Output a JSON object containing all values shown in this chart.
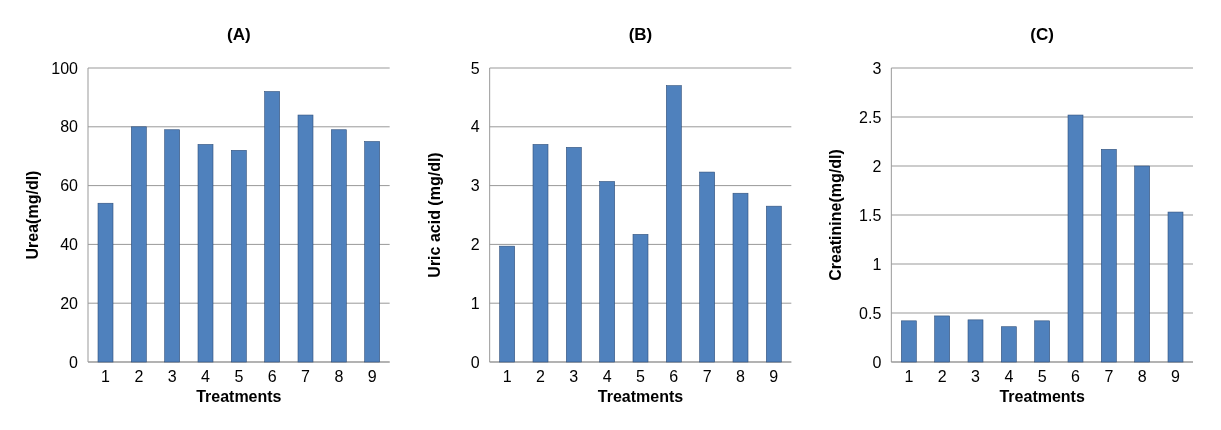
{
  "chart_data": [
    {
      "type": "bar",
      "title": "(A)",
      "xlabel": "Treatments",
      "ylabel": "Urea(mg/dl)",
      "categories": [
        "1",
        "2",
        "3",
        "4",
        "5",
        "6",
        "7",
        "8",
        "9"
      ],
      "values": [
        54,
        80,
        79,
        74,
        72,
        92,
        84,
        79,
        75
      ],
      "color": "#4f81bd",
      "ylim": [
        0,
        100
      ],
      "yticks": [
        0,
        20,
        40,
        60,
        80,
        100
      ],
      "grid": "y"
    },
    {
      "type": "bar",
      "title": "(B)",
      "xlabel": "Treatments",
      "ylabel": "Uric acid (mg/dl)",
      "categories": [
        "1",
        "2",
        "3",
        "4",
        "5",
        "6",
        "7",
        "8",
        "9"
      ],
      "values": [
        1.97,
        3.7,
        3.65,
        3.07,
        2.17,
        4.7,
        3.23,
        2.87,
        2.65
      ],
      "color": "#4f81bd",
      "ylim": [
        0,
        5
      ],
      "yticks": [
        0,
        1,
        2,
        3,
        4,
        5
      ],
      "grid": "y"
    },
    {
      "type": "bar",
      "title": "(C)",
      "xlabel": "Treatments",
      "ylabel": "Creatinine(mg/dl)",
      "categories": [
        "1",
        "2",
        "3",
        "4",
        "5",
        "6",
        "7",
        "8",
        "9"
      ],
      "values": [
        0.42,
        0.47,
        0.43,
        0.36,
        0.42,
        2.52,
        2.17,
        2.0,
        1.53
      ],
      "color": "#4f81bd",
      "ylim": [
        0,
        3
      ],
      "yticks": [
        0,
        0.5,
        1,
        1.5,
        2,
        2.5,
        3
      ],
      "grid": "y"
    }
  ]
}
